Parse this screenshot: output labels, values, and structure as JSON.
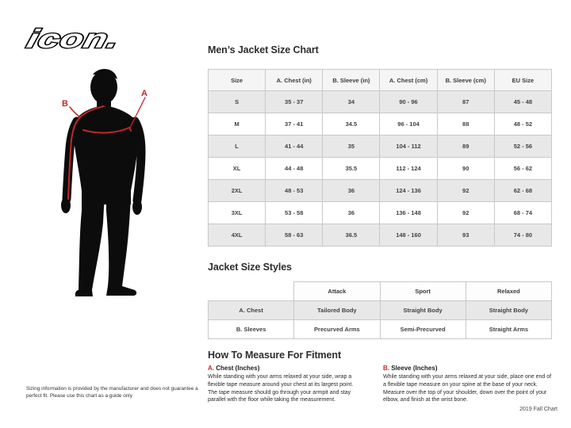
{
  "brand": {
    "logo_text": "icon."
  },
  "size_chart": {
    "title": "Men’s Jacket Size Chart",
    "columns": [
      "Size",
      "A. Chest (in)",
      "B. Sleeve (in)",
      "A. Chest (cm)",
      "B. Sleeve (cm)",
      "EU Size"
    ],
    "rows": [
      [
        "S",
        "35 - 37",
        "34",
        "90 - 96",
        "87",
        "45 - 48"
      ],
      [
        "M",
        "37 - 41",
        "34.5",
        "96 - 104",
        "88",
        "48 - 52"
      ],
      [
        "L",
        "41 - 44",
        "35",
        "104 - 112",
        "89",
        "52 - 56"
      ],
      [
        "XL",
        "44 - 48",
        "35.5",
        "112 - 124",
        "90",
        "56 - 62"
      ],
      [
        "2XL",
        "48 - 53",
        "36",
        "124 - 136",
        "92",
        "62 - 68"
      ],
      [
        "3XL",
        "53 - 58",
        "36",
        "136 - 148",
        "92",
        "68 - 74"
      ],
      [
        "4XL",
        "58 - 63",
        "36.5",
        "148 - 160",
        "93",
        "74 - 80"
      ]
    ]
  },
  "styles_table": {
    "title": "Jacket Size Styles",
    "columns": [
      "",
      "Attack",
      "Sport",
      "Relaxed"
    ],
    "rows": [
      [
        "A. Chest",
        "Tailored Body",
        "Straight Body",
        "Straight Body"
      ],
      [
        "B. Sleeves",
        "Precurved Arms",
        "Semi-Precurved",
        "Straight Arms"
      ]
    ]
  },
  "measure": {
    "title": "How To Measure For Fitment",
    "items": [
      {
        "prefix": "A.",
        "heading": "Chest (Inches)",
        "body": "While standing with your arms relaxed at your side, wrap a flexible tape measure around your chest at its largest point. The tape measure should go through your armpit and stay parallel with the floor while taking the measurement."
      },
      {
        "prefix": "B.",
        "heading": "Sleeve (Inches)",
        "body": "While standing with your arms relaxed at your side, place one end of a flexible tape measure on your spine at the base of your neck. Measure over the top of your shoulder, down over the point of your elbow, and finish at the wrist bone."
      }
    ]
  },
  "figure": {
    "label_a": "A",
    "label_b": "B"
  },
  "disclaimer": "Sizing information is provided by the manufacturer and does not guarantee a perfect fit. Please use this chart as a guide only",
  "footer": "2019 Fall Chart",
  "colors": {
    "accent_red": "#c1272d",
    "silhouette_black": "#0c0c0c",
    "row_alt_gray": "#e8e8e8",
    "header_gray": "#f5f5f5",
    "table_border": "#c9c9c9"
  }
}
